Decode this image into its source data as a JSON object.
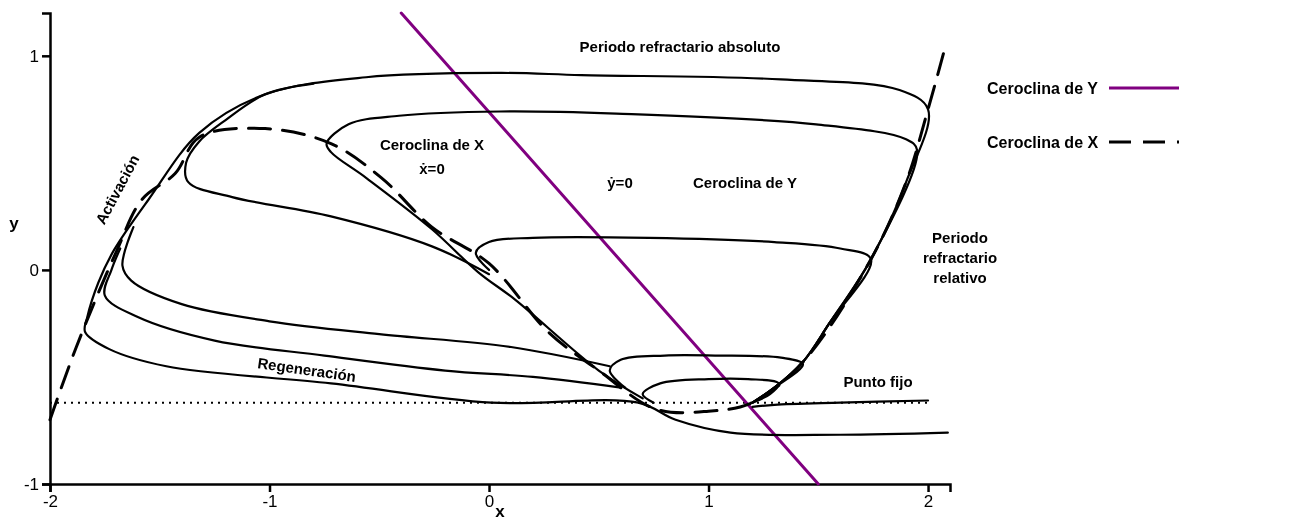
{
  "chart_data": {
    "type": "line",
    "xlabel": "x",
    "ylabel": "y",
    "xlim": [
      -2,
      2.1
    ],
    "ylim": [
      -1,
      1.2
    ],
    "xticks": [
      -2,
      -1,
      0,
      1,
      2
    ],
    "yticks": [
      -1,
      0,
      1
    ],
    "grid": false,
    "legend": "right",
    "marker": "none",
    "series": [
      {
        "name": "Ceroclina de Y",
        "color": "#800080",
        "x": [
          -0.4,
          1.5
        ],
        "values": [
          1.2,
          -1
        ]
      },
      {
        "name": "Ceroclina de X",
        "color": "#000000",
        "line_style": "dashed",
        "x": [
          -2.0,
          -1.88,
          -1.7,
          -1.58,
          -1.43,
          -1.32,
          -1.02,
          -0.72,
          -0.49,
          -0.26,
          0,
          0.27,
          0.5,
          0.76,
          1.0,
          1.2,
          1.43,
          1.74,
          1.9,
          2.0,
          2.07
        ],
        "values": [
          -0.7,
          -0.36,
          0.08,
          0.33,
          0.45,
          0.62,
          0.66,
          0.59,
          0.43,
          0.2,
          0.03,
          -0.29,
          -0.47,
          -0.65,
          -0.66,
          -0.62,
          -0.43,
          0.05,
          0.41,
          0.75,
          1.01
        ]
      },
      {
        "color": "#000000",
        "x": [
          2.09,
          1.6,
          1.1,
          0.85,
          0.68,
          0.01,
          -0.72,
          -1.47,
          -1.73,
          -1.84,
          -1.83,
          -1.78,
          -1.71,
          -1.55,
          -1.32,
          -1.02,
          -0.56,
          0.05,
          0.42,
          1.33,
          1.87,
          2.0,
          1.9,
          1.74,
          1.55,
          1.43,
          1.3,
          1.2
        ],
        "values": [
          -0.76,
          -0.77,
          -0.76,
          -0.7,
          -0.62,
          -0.62,
          -0.53,
          -0.45,
          -0.37,
          -0.29,
          -0.22,
          -0.06,
          0.09,
          0.33,
          0.64,
          0.82,
          0.9,
          0.92,
          0.91,
          0.89,
          0.84,
          0.75,
          0.41,
          0.05,
          -0.25,
          -0.43,
          -0.55,
          -0.62
        ]
      },
      {
        "color": "#000000",
        "x": [
          0.6,
          0.2,
          -0.2,
          -0.75,
          -1.25,
          -1.6,
          -1.75,
          -1.72,
          -1.68
        ],
        "values": [
          -0.55,
          -0.5,
          -0.47,
          -0.4,
          -0.33,
          -0.22,
          -0.12,
          0.0,
          0.1
        ]
      },
      {
        "color": "#000000",
        "x": [
          0.55,
          0.1,
          -0.5,
          -1.0,
          -1.4,
          -1.63,
          -1.67,
          -1.62
        ],
        "values": [
          -0.45,
          -0.36,
          -0.3,
          -0.24,
          -0.16,
          -0.05,
          0.02,
          0.2
        ]
      },
      {
        "color": "#000000",
        "x": [
          0.0,
          -0.26,
          -0.72,
          -1.17,
          -1.37,
          -1.38,
          -1.32,
          -1.2,
          -1.02,
          -0.8
        ],
        "values": [
          -0.02,
          0.11,
          0.25,
          0.34,
          0.41,
          0.5,
          0.6,
          0.7,
          0.82,
          0.87
        ]
      },
      {
        "color": "#000000",
        "x": [
          0.7,
          0.5,
          0.12,
          -0.05,
          -0.26,
          -0.56,
          -0.72,
          -0.74,
          -0.64,
          -0.41,
          0.05,
          0.58,
          1.49,
          1.9,
          1.95,
          1.74,
          1.55,
          1.43,
          1.3,
          1.2
        ],
        "values": [
          -0.6,
          -0.47,
          -0.14,
          -0.01,
          0.19,
          0.43,
          0.55,
          0.59,
          0.68,
          0.72,
          0.74,
          0.73,
          0.68,
          0.61,
          0.56,
          0.05,
          -0.25,
          -0.43,
          -0.55,
          -0.62
        ]
      },
      {
        "color": "#000000",
        "x": [
          0.0,
          -0.06,
          0.0,
          0.2,
          0.73,
          1.3,
          1.6,
          1.74,
          1.55,
          1.43,
          1.3,
          1.2
        ],
        "values": [
          0.0,
          0.08,
          0.13,
          0.15,
          0.15,
          0.13,
          0.1,
          0.05,
          -0.25,
          -0.43,
          -0.55,
          -0.62
        ]
      },
      {
        "color": "#000000",
        "x": [
          0.62,
          0.55,
          0.6,
          0.8,
          1.03,
          1.33,
          1.43,
          1.3,
          1.2
        ],
        "values": [
          -0.55,
          -0.47,
          -0.42,
          -0.4,
          -0.4,
          -0.41,
          -0.44,
          -0.55,
          -0.62
        ]
      },
      {
        "color": "#000000",
        "x": [
          0.75,
          0.7,
          0.78,
          1.0,
          1.18,
          1.32,
          1.28,
          1.2
        ],
        "values": [
          -0.62,
          -0.58,
          -0.53,
          -0.51,
          -0.51,
          -0.53,
          -0.58,
          -0.62
        ]
      },
      {
        "color": "#000000",
        "x": [
          2.0,
          1.6,
          1.3,
          1.2
        ],
        "values": [
          -0.61,
          -0.62,
          -0.63,
          -0.64
        ]
      }
    ],
    "ref_lines": [
      {
        "axis": "y",
        "value": -0.62,
        "line_style": "dotted",
        "color": "#000000"
      }
    ],
    "annotations": [
      "Periodo refractario absoluto",
      "Activación",
      "Ceroclina de X",
      "ẋ=0",
      "ẏ=0",
      "Ceroclina de Y",
      "Periodo refractario relativo",
      "Regeneración",
      "Punto fijo"
    ]
  }
}
